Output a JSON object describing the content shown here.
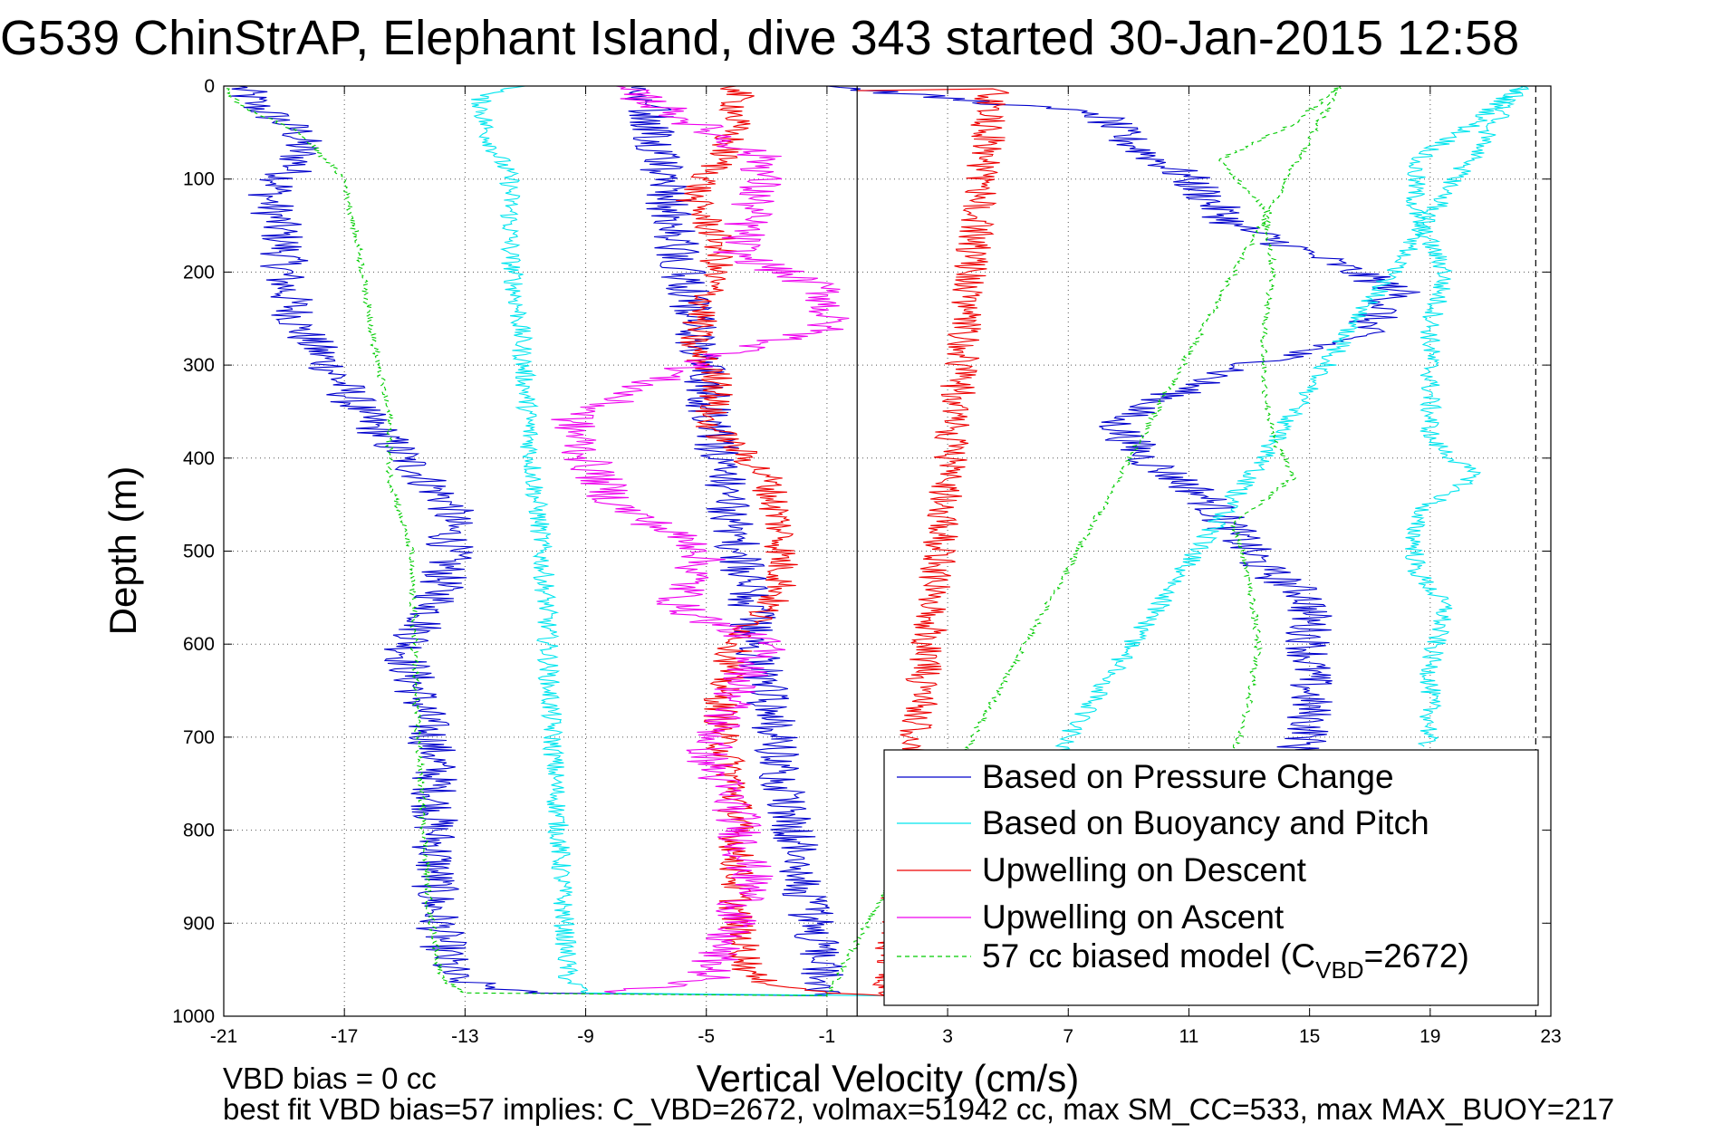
{
  "chart_data": {
    "type": "line",
    "title": "G539 ChinStrAP, Elephant Island, dive 343 started 30-Jan-2015 12:58",
    "xlabel": "Vertical Velocity (cm/s)",
    "ylabel": "Depth (m)",
    "xlim": [
      -21,
      23
    ],
    "ylim": [
      1000,
      0
    ],
    "y_reversed": true,
    "grid": true,
    "x_ticks": [
      "-21",
      "-17",
      "-13",
      "-9",
      "-5",
      "-1",
      "3",
      "7",
      "11",
      "15",
      "19",
      "23"
    ],
    "x_tick_values": [
      -21,
      -17,
      -13,
      -9,
      -5,
      -1,
      3,
      7,
      11,
      15,
      19,
      23
    ],
    "y_ticks": [
      "0",
      "100",
      "200",
      "300",
      "400",
      "500",
      "600",
      "700",
      "800",
      "900",
      "1000"
    ],
    "y_tick_values": [
      0,
      100,
      200,
      300,
      400,
      500,
      600,
      700,
      800,
      900,
      1000
    ],
    "legend_position": "bottom-right",
    "zero_line_x": 0,
    "dashed_vertical_x": 22.5,
    "series": [
      {
        "name": "Based on Pressure Change",
        "color": "#0000cc",
        "style": "solid",
        "noise": 0.8,
        "points": [
          [
            -20.5,
            0
          ],
          [
            -20,
            20
          ],
          [
            -18.5,
            50
          ],
          [
            -18.5,
            80
          ],
          [
            -19.5,
            120
          ],
          [
            -19,
            170
          ],
          [
            -19,
            210
          ],
          [
            -18.5,
            260
          ],
          [
            -17.5,
            300
          ],
          [
            -16.5,
            350
          ],
          [
            -15,
            400
          ],
          [
            -13.5,
            450
          ],
          [
            -13.5,
            500
          ],
          [
            -14,
            560
          ],
          [
            -15,
            610
          ],
          [
            -14.5,
            660
          ],
          [
            -14,
            720
          ],
          [
            -14,
            800
          ],
          [
            -14,
            880
          ],
          [
            -13.5,
            960
          ],
          [
            -11,
            975
          ],
          [
            -1,
            978
          ],
          [
            -7,
            0
          ],
          [
            -1,
            0
          ],
          [
            8,
            30
          ],
          [
            9,
            60
          ],
          [
            11,
            100
          ],
          [
            12.5,
            150
          ],
          [
            15,
            180
          ],
          [
            18,
            220
          ],
          [
            16.5,
            270
          ],
          [
            12,
            310
          ],
          [
            8.5,
            360
          ],
          [
            9.5,
            400
          ],
          [
            11.5,
            440
          ],
          [
            12.5,
            480
          ],
          [
            13.5,
            520
          ],
          [
            15,
            550
          ],
          [
            15,
            600
          ],
          [
            15,
            650
          ],
          [
            15,
            700
          ],
          [
            14.5,
            715
          ]
        ]
      },
      {
        "name": "Based on Buoyancy and Pitch",
        "color": "#00e5ee",
        "style": "solid",
        "noise": 0.35,
        "points": [
          [
            -11,
            0
          ],
          [
            -12.5,
            10
          ],
          [
            -12.3,
            50
          ],
          [
            -11.5,
            100
          ],
          [
            -11.5,
            180
          ],
          [
            -11.2,
            250
          ],
          [
            -11,
            320
          ],
          [
            -10.8,
            400
          ],
          [
            -10.5,
            480
          ],
          [
            -10.3,
            560
          ],
          [
            -10.2,
            650
          ],
          [
            -10,
            750
          ],
          [
            -9.8,
            850
          ],
          [
            -9.6,
            960
          ],
          [
            -9,
            975
          ],
          [
            1,
            978
          ],
          [
            22,
            0
          ],
          [
            20.5,
            40
          ],
          [
            18.5,
            80
          ],
          [
            18.5,
            140
          ],
          [
            19.5,
            200
          ],
          [
            19,
            260
          ],
          [
            19,
            320
          ],
          [
            19,
            380
          ],
          [
            20.5,
            420
          ],
          [
            18.5,
            460
          ],
          [
            18.5,
            520
          ],
          [
            19.5,
            560
          ],
          [
            19,
            620
          ],
          [
            19,
            690
          ],
          [
            18.8,
            710
          ]
        ]
      },
      {
        "name": "Upwelling on Descent",
        "color": "#ee0000",
        "style": "solid",
        "noise": 0.6,
        "points": [
          [
            -4,
            0
          ],
          [
            -4,
            30
          ],
          [
            -4.5,
            80
          ],
          [
            -5.5,
            120
          ],
          [
            -4.5,
            170
          ],
          [
            -5,
            230
          ],
          [
            -5.5,
            280
          ],
          [
            -4.5,
            320
          ],
          [
            -5,
            360
          ],
          [
            -3,
            420
          ],
          [
            -2.5,
            480
          ],
          [
            -2.5,
            540
          ],
          [
            -4,
            600
          ],
          [
            -4.5,
            650
          ],
          [
            -4.5,
            700
          ],
          [
            -4,
            760
          ],
          [
            -4,
            830
          ],
          [
            -4,
            900
          ],
          [
            -3.5,
            960
          ],
          [
            -1,
            975
          ],
          [
            1,
            978
          ],
          [
            4.5,
            3
          ],
          [
            0,
            5
          ]
        ]
      },
      {
        "name": "Upwelling on Ascent",
        "color": "#ee00ee",
        "style": "solid",
        "noise": 0.8,
        "points": [
          [
            -8,
            0
          ],
          [
            -6,
            30
          ],
          [
            -3,
            80
          ],
          [
            -3.5,
            130
          ],
          [
            -4,
            180
          ],
          [
            -1,
            220
          ],
          [
            -1,
            260
          ],
          [
            -4.5,
            290
          ],
          [
            -7,
            320
          ],
          [
            -9.5,
            360
          ],
          [
            -9,
            400
          ],
          [
            -8,
            450
          ],
          [
            -5,
            500
          ],
          [
            -6,
            560
          ],
          [
            -3,
            600
          ],
          [
            -4,
            650
          ],
          [
            -5,
            720
          ],
          [
            -4,
            780
          ],
          [
            -3.5,
            860
          ],
          [
            -4.5,
            920
          ],
          [
            -5,
            960
          ],
          [
            -8,
            975
          ]
        ]
      },
      {
        "name": "57 cc biased model (C",
        "name_sub": "VBD",
        "name_tail": "=2672)",
        "color": "#00cc00",
        "style": "dashed",
        "noise": 0.12,
        "points": [
          [
            -21,
            0
          ],
          [
            -20.5,
            20
          ],
          [
            -18.5,
            50
          ],
          [
            -17,
            100
          ],
          [
            -16.5,
            180
          ],
          [
            -16,
            280
          ],
          [
            -15.5,
            360
          ],
          [
            -15.5,
            420
          ],
          [
            -14.8,
            500
          ],
          [
            -14.7,
            580
          ],
          [
            -14.6,
            680
          ],
          [
            -14.4,
            780
          ],
          [
            -14.2,
            880
          ],
          [
            -13.8,
            960
          ],
          [
            -13,
            975
          ],
          [
            -1,
            978
          ],
          [
            16,
            0
          ],
          [
            14.5,
            40
          ],
          [
            12,
            80
          ],
          [
            13.5,
            130
          ],
          [
            13.8,
            200
          ],
          [
            13.5,
            260
          ],
          [
            13.5,
            320
          ],
          [
            13.8,
            380
          ],
          [
            14.5,
            420
          ],
          [
            12.5,
            470
          ],
          [
            13,
            530
          ],
          [
            13.3,
            600
          ],
          [
            13,
            660
          ],
          [
            12.5,
            720
          ]
        ]
      }
    ]
  },
  "footer": {
    "line1": "VBD bias = 0 cc",
    "line2": "best fit VBD bias=57 implies: C_VBD=2672, volmax=51942 cc, max SM_CC=533, max MAX_BUOY=217"
  }
}
